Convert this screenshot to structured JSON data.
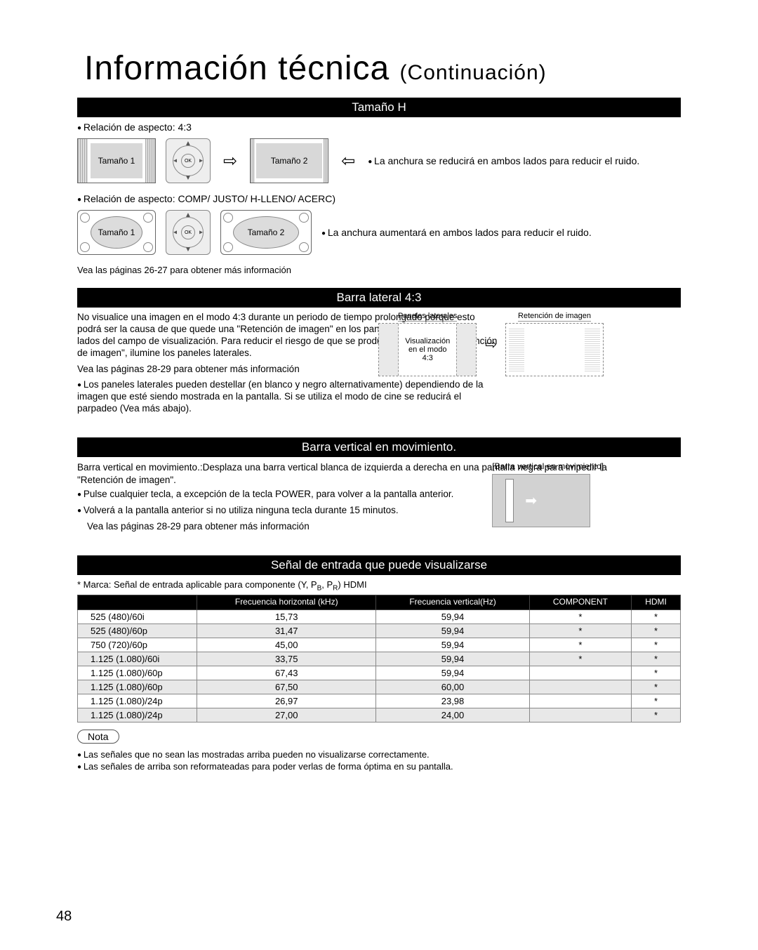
{
  "page": {
    "title_main": "Información técnica",
    "title_cont": "(Continuación)",
    "page_number": "48"
  },
  "section_tamano_h": {
    "header": "Tamaño H",
    "aspect_note": "Relación de aspecto: 4:3",
    "size1": "Tamaño 1",
    "size2": "Tamaño 2",
    "ok": "OK",
    "side_text_1": "La anchura se reducirá en ambos lados para reducir el ruido.",
    "aspect_note2": "Relación de aspecto:  COMP/ JUSTO/ H-LLENO/ ACERC)",
    "side_text_2": "La anchura aumentará en ambos lados para reducir el ruido.",
    "more_info": "Vea las páginas 26-27 para obtener más información"
  },
  "section_barra_lateral": {
    "header": "Barra lateral 4:3",
    "para": "No visualice una imagen en el modo 4:3 durante un periodo de tiempo prolongado porque esto podrá ser la causa de que quede una \"Retención de imagen\" en los paneles laterales a ambos lados del campo de visualización. Para reducir el riesgo de que se produzca el  efecto de \"Retención de imagen\", ilumine los paneles laterales.",
    "more_info": "Vea las páginas 28-29 para obtener más información",
    "bullet": "Los paneles laterales pueden destellar (en blanco y negro alternativamente) dependiendo de la imagen que esté siendo mostrada en la pantalla. Si se utiliza el modo de cine se reducirá el parpadeo (Vea más abajo).",
    "fig_left_label": "Paneles laterales",
    "fig_right_label": "Retención de imagen",
    "fig_center_text": "Visualización en el modo 4:3"
  },
  "section_barra_vertical": {
    "header": "Barra vertical en movimiento.",
    "desc_label": "Barra vertical en movimiento.:",
    "desc": "Desplaza una barra vertical blanca de izquierda a derecha en una pantalla negra para impedir la \"Retención de imagen\".",
    "b1": "Pulse cualquier tecla, a excepción de la tecla POWER, para volver a la pantalla anterior.",
    "b2": "Volverá a la pantalla anterior si no utiliza ninguna tecla durante 15 minutos.",
    "more_info": "Vea las páginas 28-29 para obtener más información",
    "fig_caption": "[Barra vertical en movimiento]"
  },
  "section_senal": {
    "header": "Señal de entrada que puede visualizarse",
    "note": "* Marca:  Señal de entrada aplicable para componente (Y, PB, PR) HDMI",
    "columns": [
      "",
      "Frecuencia horizontal (kHz)",
      "Frecuencia vertical(Hz)",
      "COMPONENT",
      "HDMI"
    ],
    "rows": [
      [
        "525 (480)/60i",
        "15,73",
        "59,94",
        "*",
        "*"
      ],
      [
        "525 (480)/60p",
        "31,47",
        "59,94",
        "*",
        "*"
      ],
      [
        "750 (720)/60p",
        "45,00",
        "59,94",
        "*",
        "*"
      ],
      [
        "1.125 (1.080)/60i",
        "33,75",
        "59,94",
        "*",
        "*"
      ],
      [
        "1.125 (1.080)/60p",
        "67,43",
        "59,94",
        "",
        "*"
      ],
      [
        "1.125 (1.080)/60p",
        "67,50",
        "60,00",
        "",
        "*"
      ],
      [
        "1.125 (1.080)/24p",
        "26,97",
        "23,98",
        "",
        "*"
      ],
      [
        "1.125 (1.080)/24p",
        "27,00",
        "24,00",
        "",
        "*"
      ]
    ]
  },
  "nota": {
    "label": "Nota",
    "b1": "Las señales que no sean las mostradas arriba pueden no visualizarse correctamente.",
    "b2": "Las señales de arriba son reformateadas para poder verlas de forma óptima en su pantalla."
  }
}
